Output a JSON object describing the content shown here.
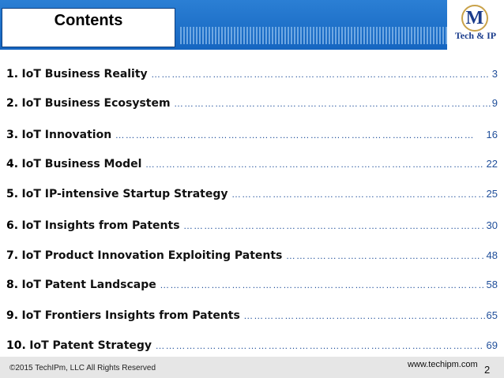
{
  "header": {
    "title": "Contents"
  },
  "logo": {
    "mark": "M",
    "text": "Tech & IP"
  },
  "toc": [
    {
      "num": "1.",
      "label": "IoT Business Reality",
      "page": "3"
    },
    {
      "num": "2.",
      "label": "IoT Business Ecosystem",
      "page": "9"
    },
    {
      "num": "3.",
      "label": "IoT Innovation",
      "page": "16"
    },
    {
      "num": "4.",
      "label": "IoT Business Model",
      "page": "22"
    },
    {
      "num": "5.",
      "label": "IoT IP-intensive Startup Strategy",
      "page": "25"
    },
    {
      "num": "6.",
      "label": "IoT Insights from Patents",
      "page": "30"
    },
    {
      "num": "7.",
      "label": "IoT Product Innovation Exploiting Patents",
      "page": "48"
    },
    {
      "num": "8.",
      "label": "IoT Patent Landscape",
      "page": "58"
    },
    {
      "num": "9.",
      "label": "IoT Frontiers Insights from Patents",
      "page": "65"
    },
    {
      "num": "10.",
      "label": "IoT Patent Strategy",
      "page": "69"
    }
  ],
  "footer": {
    "copyright": "©2015 TechIPm, LLC All Rights Reserved",
    "website": "www.techipm.com",
    "page_number": "2"
  }
}
